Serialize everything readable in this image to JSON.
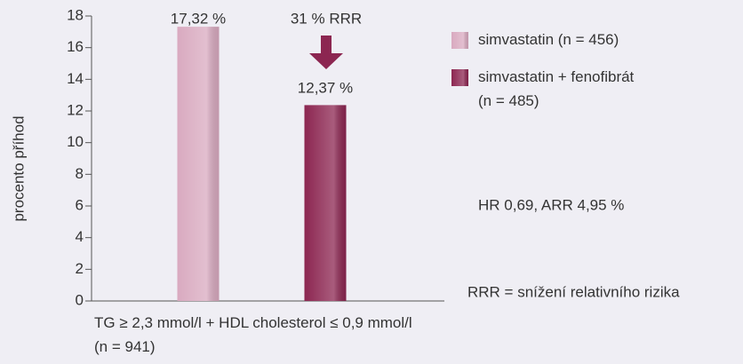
{
  "chart_data": {
    "type": "bar",
    "y_label": "procento příhod",
    "categories": [
      "TG ≥ 2,3 mmol/l + HDL cholesterol ≤ 0,9 mmol/l\n(n = 941)"
    ],
    "series": [
      {
        "name": "simvastatin (n = 456)",
        "color": "#d9aac0",
        "values": [
          17.32
        ],
        "value_labels": [
          "17,32 %"
        ]
      },
      {
        "name": "simvastatin + fenofibrát\n(n = 485)",
        "color": "#8c2651",
        "values": [
          12.37
        ],
        "value_labels": [
          "12,37 %"
        ]
      }
    ],
    "ylim": [
      0,
      18
    ],
    "yticks": [
      0,
      2,
      4,
      6,
      8,
      10,
      12,
      14,
      16,
      18
    ],
    "annotations": [
      "31 % RRR",
      "HR 0,69, ARR 4,95 %",
      "RRR = snížení relativního rizika"
    ]
  }
}
